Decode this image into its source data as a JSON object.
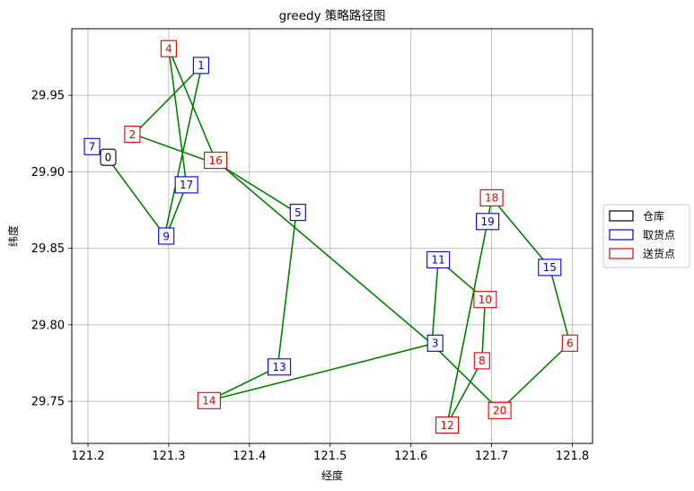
{
  "chart_data": {
    "type": "line",
    "title": "greedy 策略路径图",
    "xlabel": "经度",
    "ylabel": "纬度",
    "xlim": [
      121.18,
      121.825
    ],
    "ylim": [
      29.7225,
      29.9935
    ],
    "x_ticks": [
      "121.2",
      "121.3",
      "121.4",
      "121.5",
      "121.6",
      "121.7",
      "121.8"
    ],
    "y_ticks": [
      "29.75",
      "29.80",
      "29.85",
      "29.90",
      "29.95"
    ],
    "grid": true,
    "route_color": "#008000",
    "legend_position": "center-right",
    "legend": [
      {
        "label": "仓库",
        "color": "#000000"
      },
      {
        "label": "取货点",
        "color": "#0000cc"
      },
      {
        "label": "送货点",
        "color": "#dd0000"
      }
    ],
    "nodes": [
      {
        "id": "0",
        "kind": "depot",
        "x": 121.225,
        "y": 29.9095
      },
      {
        "id": "1",
        "kind": "pickup",
        "x": 121.34,
        "y": 29.9695
      },
      {
        "id": "2",
        "kind": "delivery",
        "x": 121.255,
        "y": 29.9245
      },
      {
        "id": "3",
        "kind": "pickup",
        "x": 121.63,
        "y": 29.788
      },
      {
        "id": "4",
        "kind": "delivery",
        "x": 121.3,
        "y": 29.9805
      },
      {
        "id": "5",
        "kind": "pickup",
        "x": 121.46,
        "y": 29.8735
      },
      {
        "id": "6",
        "kind": "delivery",
        "x": 121.797,
        "y": 29.788
      },
      {
        "id": "7",
        "kind": "pickup",
        "x": 121.205,
        "y": 29.9165
      },
      {
        "id": "8",
        "kind": "delivery",
        "x": 121.688,
        "y": 29.7765
      },
      {
        "id": "9",
        "kind": "pickup",
        "x": 121.297,
        "y": 29.858
      },
      {
        "id": "10",
        "kind": "delivery",
        "x": 121.692,
        "y": 29.8165
      },
      {
        "id": "11",
        "kind": "pickup",
        "x": 121.634,
        "y": 29.8425
      },
      {
        "id": "12",
        "kind": "delivery",
        "x": 121.645,
        "y": 29.7345
      },
      {
        "id": "13",
        "kind": "pickup",
        "x": 121.437,
        "y": 29.7725
      },
      {
        "id": "14",
        "kind": "delivery",
        "x": 121.35,
        "y": 29.7505
      },
      {
        "id": "15",
        "kind": "pickup",
        "x": 121.772,
        "y": 29.8375
      },
      {
        "id": "16",
        "kind": "delivery",
        "x": 121.358,
        "y": 29.9075
      },
      {
        "id": "17",
        "kind": "pickup",
        "x": 121.322,
        "y": 29.8915
      },
      {
        "id": "18",
        "kind": "delivery",
        "x": 121.7,
        "y": 29.883
      },
      {
        "id": "19",
        "kind": "pickup",
        "x": 121.695,
        "y": 29.8675
      },
      {
        "id": "20",
        "kind": "delivery",
        "x": 121.71,
        "y": 29.744
      }
    ],
    "route": [
      [
        121.222,
        29.9105
      ],
      [
        121.295,
        29.8585
      ],
      [
        121.341,
        29.9695
      ],
      [
        121.257,
        29.9245
      ],
      [
        121.365,
        29.904
      ],
      [
        121.458,
        29.8735
      ],
      [
        121.435,
        29.7725
      ],
      [
        121.35,
        29.7505
      ],
      [
        121.626,
        29.7875
      ],
      [
        121.634,
        29.8425
      ],
      [
        121.692,
        29.8165
      ],
      [
        121.688,
        29.7765
      ],
      [
        121.645,
        29.735
      ],
      [
        121.695,
        29.8675
      ],
      [
        121.7,
        29.883
      ],
      [
        121.772,
        29.8375
      ],
      [
        121.797,
        29.788
      ],
      [
        121.71,
        29.744
      ],
      [
        121.626,
        29.7875
      ],
      [
        121.358,
        29.9075
      ],
      [
        121.3,
        29.9805
      ],
      [
        121.322,
        29.8915
      ],
      [
        121.297,
        29.858
      ]
    ]
  }
}
